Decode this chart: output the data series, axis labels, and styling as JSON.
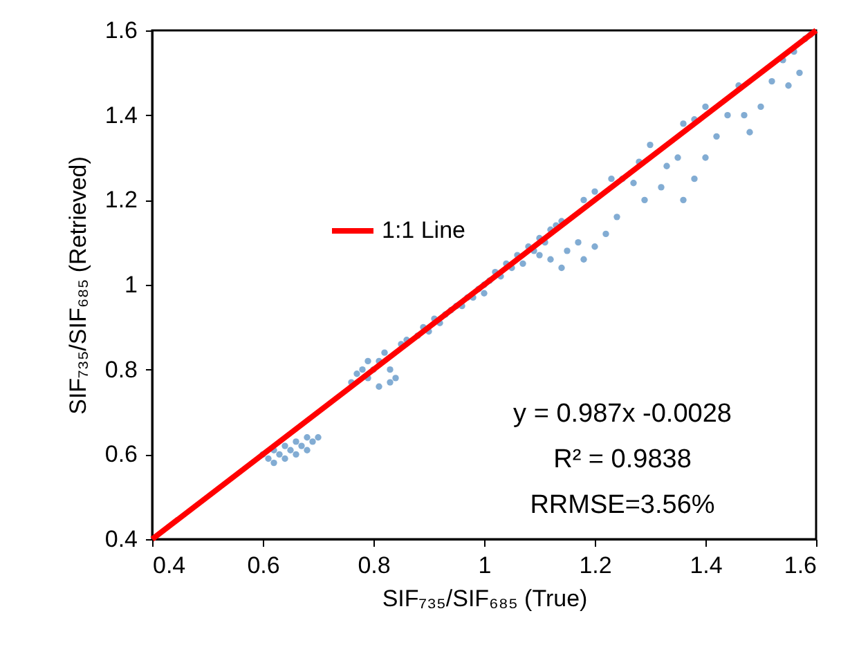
{
  "chart_data": {
    "type": "scatter",
    "xlabel": "SIF₇₃₅/SIF₆₈₅ (True)",
    "ylabel": "SIF₇₃₅/SIF₆₈₅ (Retrieved)",
    "xlim": [
      0.4,
      1.6
    ],
    "ylim": [
      0.4,
      1.6
    ],
    "xticks": [
      0.4,
      0.6,
      0.8,
      1,
      1.2,
      1.4,
      1.6
    ],
    "yticks": [
      0.4,
      0.6,
      0.8,
      1,
      1.2,
      1.4,
      1.6
    ],
    "grid": false,
    "legend": "top left",
    "marker": "circle",
    "annotations": [
      "y = 0.987x -0.0028",
      "R² = 0.9838",
      "RRMSE=3.56%"
    ],
    "series": [
      {
        "color": "#2e75b6",
        "x": [
          0.6,
          0.61,
          0.62,
          0.63,
          0.64,
          0.65,
          0.66,
          0.67,
          0.68,
          0.69,
          0.62,
          0.64,
          0.66,
          0.68,
          0.7,
          0.76,
          0.77,
          0.78,
          0.79,
          0.8,
          0.81,
          0.82,
          0.83,
          0.84,
          0.83,
          0.81,
          0.79,
          0.85,
          0.86,
          0.88,
          0.89,
          0.9,
          0.91,
          0.92,
          0.93,
          0.94,
          0.95,
          0.96,
          0.97,
          0.98,
          0.99,
          1.0,
          1.0,
          1.01,
          1.02,
          1.03,
          1.04,
          1.05,
          1.06,
          1.07,
          1.08,
          1.09,
          1.1,
          1.11,
          1.12,
          1.13,
          1.14,
          1.1,
          1.12,
          1.15,
          1.17,
          1.14,
          1.18,
          1.2,
          1.22,
          1.24,
          1.18,
          1.2,
          1.23,
          1.25,
          1.27,
          1.28,
          1.3,
          1.29,
          1.32,
          1.33,
          1.35,
          1.36,
          1.38,
          1.4,
          1.36,
          1.38,
          1.4,
          1.42,
          1.44,
          1.46,
          1.47,
          1.48,
          1.5,
          1.52,
          1.54,
          1.56,
          1.58,
          1.59,
          1.55,
          1.57
        ],
        "values": [
          0.6,
          0.59,
          0.61,
          0.6,
          0.62,
          0.61,
          0.63,
          0.62,
          0.64,
          0.63,
          0.58,
          0.59,
          0.6,
          0.61,
          0.64,
          0.77,
          0.79,
          0.8,
          0.82,
          0.8,
          0.82,
          0.84,
          0.8,
          0.78,
          0.77,
          0.76,
          0.78,
          0.86,
          0.87,
          0.88,
          0.9,
          0.89,
          0.92,
          0.91,
          0.93,
          0.94,
          0.95,
          0.95,
          0.97,
          0.97,
          0.99,
          0.98,
          1.0,
          1.01,
          1.03,
          1.02,
          1.05,
          1.04,
          1.07,
          1.05,
          1.09,
          1.08,
          1.11,
          1.1,
          1.13,
          1.14,
          1.15,
          1.07,
          1.06,
          1.08,
          1.1,
          1.04,
          1.06,
          1.09,
          1.12,
          1.16,
          1.2,
          1.22,
          1.25,
          1.25,
          1.24,
          1.29,
          1.33,
          1.2,
          1.23,
          1.28,
          1.3,
          1.38,
          1.39,
          1.42,
          1.2,
          1.25,
          1.3,
          1.35,
          1.4,
          1.47,
          1.4,
          1.36,
          1.42,
          1.48,
          1.53,
          1.55,
          1.58,
          1.59,
          1.47,
          1.5
        ]
      },
      {
        "type": "line",
        "name": "1:1 Line",
        "color": "#ff0000",
        "x": [
          0.4,
          1.6
        ],
        "values": [
          0.4,
          1.6
        ],
        "marker": "none",
        "line_style": "solid"
      }
    ]
  }
}
